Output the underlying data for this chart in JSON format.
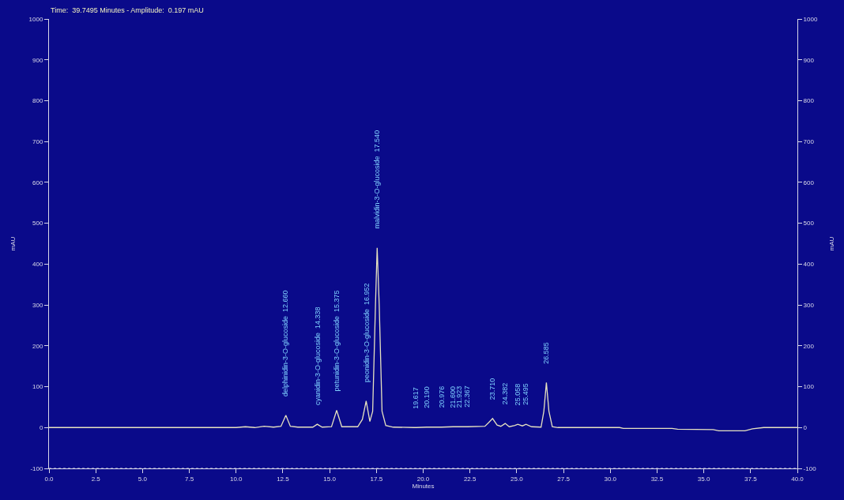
{
  "chart_data": {
    "type": "line",
    "xlabel": "Minutes",
    "ylabel": "mAU",
    "y2label": "mAU",
    "annotations": [
      "Time:  39.7495 Minutes - Amplitude:  0.197 mAU",
      {
        "text": "delphinidin-3-O-glucoside  12.660",
        "x": 12.66,
        "y": 30
      },
      {
        "text": "cyanidin-3-O-glucoside  14.338",
        "x": 14.338,
        "y": 8
      },
      {
        "text": "petunidin-3-O-glucoside  15.375",
        "x": 15.375,
        "y": 42
      },
      {
        "text": "peonidin-3-O-glucoside  16.952",
        "x": 16.952,
        "y": 65
      },
      {
        "text": "malvidin-3-O-glucoside  17.540",
        "x": 17.54,
        "y": 440
      },
      {
        "text": "19.617",
        "x": 19.617,
        "y": 0
      },
      {
        "text": "20.190",
        "x": 20.19,
        "y": 1
      },
      {
        "text": "20.976",
        "x": 20.976,
        "y": 1
      },
      {
        "text": "21.600",
        "x": 21.6,
        "y": 2
      },
      {
        "text": "21.923",
        "x": 21.923,
        "y": 2
      },
      {
        "text": "22.367",
        "x": 22.367,
        "y": 2
      },
      {
        "text": "23.710",
        "x": 23.71,
        "y": 22
      },
      {
        "text": "24.382",
        "x": 24.382,
        "y": 10
      },
      {
        "text": "25.058",
        "x": 25.058,
        "y": 8
      },
      {
        "text": "25.495",
        "x": 25.495,
        "y": 8
      },
      {
        "text": "26.585",
        "x": 26.585,
        "y": 110
      }
    ],
    "series": [
      {
        "color": "#e6e2c0",
        "x": [
          0,
          10,
          10.5,
          11,
          11.5,
          12,
          12.4,
          12.66,
          12.9,
          13.3,
          14.1,
          14.338,
          14.6,
          15.1,
          15.375,
          15.65,
          16.5,
          16.75,
          16.952,
          17.15,
          17.3,
          17.45,
          17.54,
          17.65,
          17.8,
          18.0,
          18.4,
          19.5,
          19.617,
          20.19,
          20.976,
          21.6,
          21.923,
          22.367,
          23.3,
          23.5,
          23.71,
          23.95,
          24.15,
          24.382,
          24.6,
          24.9,
          25.058,
          25.3,
          25.495,
          25.8,
          26.3,
          26.45,
          26.585,
          26.72,
          26.9,
          27.2,
          30.5,
          30.7,
          33.3,
          33.6,
          35.5,
          35.8,
          37.2,
          37.6,
          38.2,
          40
        ],
        "values": [
          0,
          0,
          2,
          0,
          3,
          1,
          3,
          30,
          3,
          1,
          1,
          8,
          1,
          2,
          42,
          2,
          2,
          20,
          65,
          15,
          40,
          300,
          440,
          300,
          40,
          5,
          1,
          0,
          0,
          1,
          1,
          2,
          2,
          2,
          3,
          12,
          22,
          6,
          3,
          10,
          2,
          5,
          8,
          4,
          8,
          2,
          1,
          40,
          110,
          40,
          2,
          0,
          0,
          -2,
          -2,
          -4,
          -5,
          -8,
          -8,
          -3,
          0,
          0
        ]
      }
    ],
    "xlim": [
      0,
      40
    ],
    "xticks": [
      {
        "value": 0,
        "label": "0.0"
      },
      {
        "value": 2.5,
        "label": "2.5"
      },
      {
        "value": 5,
        "label": "5.0"
      },
      {
        "value": 7.5,
        "label": "7.5"
      },
      {
        "value": 10,
        "label": "10.0"
      },
      {
        "value": 12.5,
        "label": "12.5"
      },
      {
        "value": 15,
        "label": "15.0"
      },
      {
        "value": 17.5,
        "label": "17.5"
      },
      {
        "value": 20,
        "label": "20.0"
      },
      {
        "value": 22.5,
        "label": "22.5"
      },
      {
        "value": 25,
        "label": "25.0"
      },
      {
        "value": 27.5,
        "label": "27.5"
      },
      {
        "value": 30,
        "label": "30.0"
      },
      {
        "value": 32.5,
        "label": "32.5"
      },
      {
        "value": 35,
        "label": "35.0"
      },
      {
        "value": 37.5,
        "label": "37.5"
      },
      {
        "value": 40,
        "label": "40.0"
      }
    ],
    "ylim": [
      -100,
      1000
    ],
    "yticks": [
      -100,
      0,
      100,
      200,
      300,
      400,
      500,
      600,
      700,
      800,
      900,
      1000
    ],
    "y2lim": [
      -100,
      1000
    ],
    "y2ticks": [
      -100,
      0,
      100,
      200,
      300,
      400,
      500,
      600,
      700,
      800,
      900,
      1000
    ],
    "grid": false,
    "marker": "none",
    "line_style": "solid"
  }
}
